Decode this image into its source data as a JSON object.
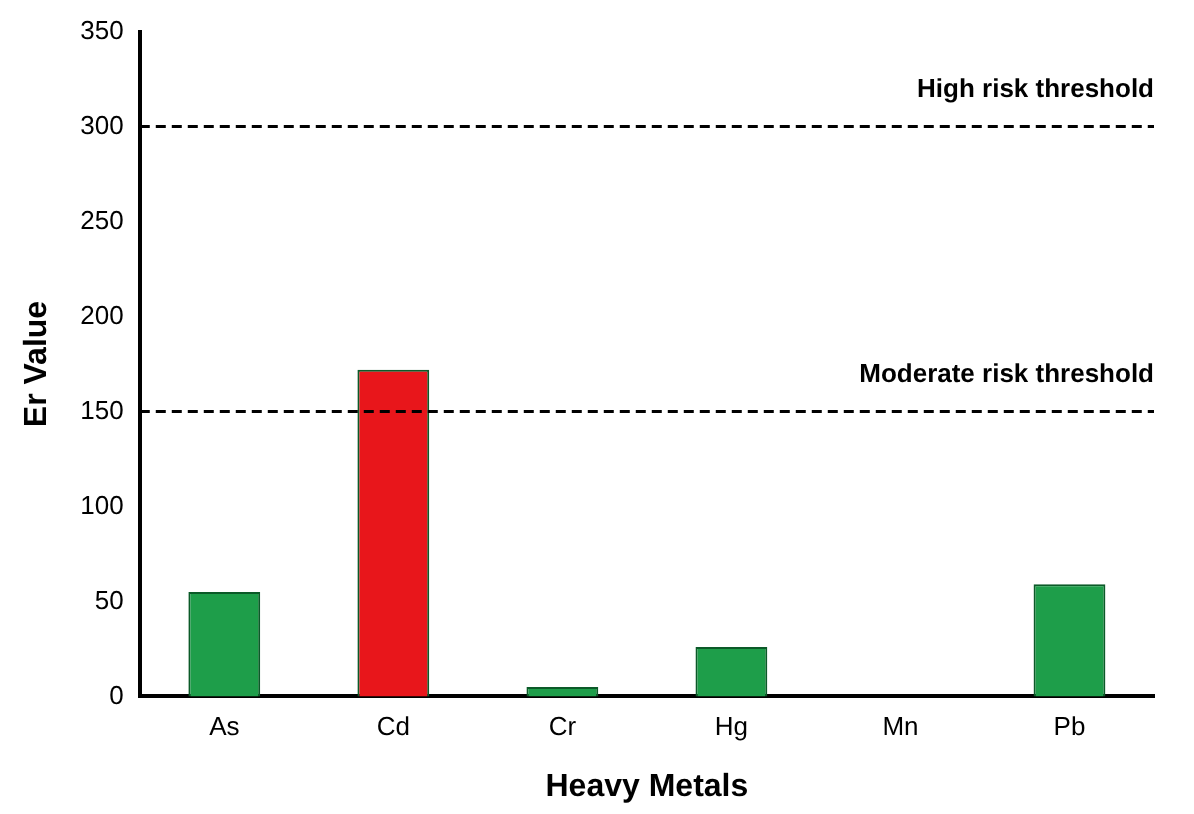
{
  "chart_data": {
    "type": "bar",
    "xlabel": "Heavy Metals",
    "ylabel": "Er Value",
    "categories": [
      "As",
      "Cd",
      "Cr",
      "Hg",
      "Mn",
      "Pb"
    ],
    "values": [
      55,
      172,
      5,
      26,
      0,
      59
    ],
    "colors": [
      "#1e9e4a",
      "#e8161b",
      "#1e9e4a",
      "#1e9e4a",
      "#1e9e4a",
      "#1e9e4a"
    ],
    "ylim": [
      0,
      350
    ],
    "yticks": [
      0,
      50,
      100,
      150,
      200,
      250,
      300,
      350
    ],
    "grid": false,
    "ref_lines": [
      {
        "axis": "y",
        "value": 300,
        "label": "High risk threshold",
        "color": "#000000",
        "line_style": "dashed"
      },
      {
        "axis": "y",
        "value": 150,
        "label": "Moderate risk threshold",
        "color": "#000000",
        "line_style": "dashed"
      }
    ]
  }
}
